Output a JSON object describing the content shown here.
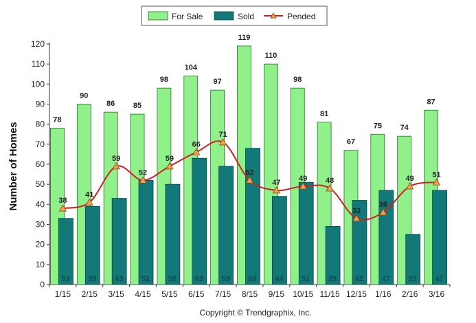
{
  "chart_data": {
    "type": "bar",
    "categories": [
      "1/15",
      "2/15",
      "3/15",
      "4/15",
      "5/15",
      "6/15",
      "7/15",
      "8/15",
      "9/15",
      "10/15",
      "11/15",
      "12/15",
      "1/16",
      "2/16",
      "3/16"
    ],
    "series": [
      {
        "name": "For Sale",
        "kind": "bar",
        "color": "#90f08a",
        "values": [
          78,
          90,
          86,
          85,
          98,
          104,
          97,
          119,
          110,
          98,
          81,
          67,
          75,
          74,
          87
        ]
      },
      {
        "name": "Sold",
        "kind": "bar",
        "color": "#127878",
        "values": [
          33,
          39,
          43,
          52,
          50,
          63,
          59,
          68,
          44,
          51,
          29,
          42,
          47,
          25,
          47
        ]
      },
      {
        "name": "Pended",
        "kind": "line",
        "color": "#cc2020",
        "marker_color": "#f0a050",
        "values": [
          38,
          41,
          59,
          52,
          59,
          66,
          71,
          52,
          47,
          49,
          48,
          33,
          36,
          49,
          51
        ]
      }
    ],
    "title": "",
    "xlabel": "",
    "ylabel": "Number of Homes",
    "ylim": [
      0,
      120
    ],
    "yticks": [
      0,
      10,
      20,
      30,
      40,
      50,
      60,
      70,
      80,
      90,
      100,
      110,
      120
    ],
    "grid": false,
    "legend_position": "top-center"
  },
  "footer": {
    "copyright": "Copyright © Trendgraphix, Inc."
  }
}
